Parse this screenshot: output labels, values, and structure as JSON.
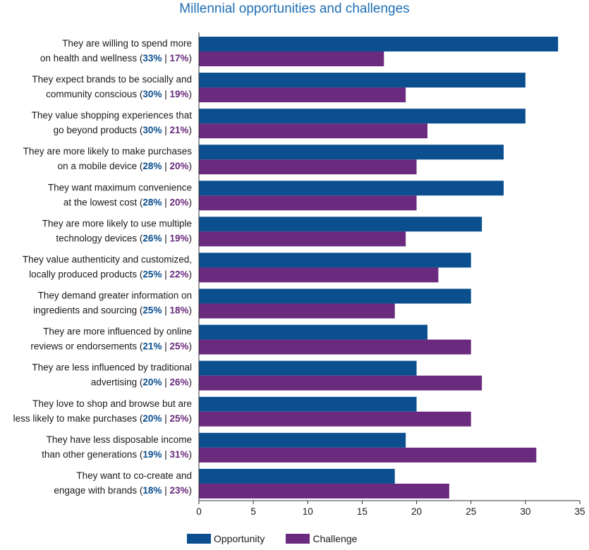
{
  "chart_data": {
    "type": "bar",
    "orientation": "horizontal",
    "title": "Millennial opportunities and challenges",
    "categories": [
      {
        "line1": "They are willing to spend more",
        "line2": "on health and wellness",
        "pct_opp": "33%",
        "pct_ch": "17%"
      },
      {
        "line1": "They expect brands to be socially and",
        "line2": "community conscious",
        "pct_opp": "30%",
        "pct_ch": "19%"
      },
      {
        "line1": "They value shopping experiences that",
        "line2": "go beyond products",
        "pct_opp": "30%",
        "pct_ch": "21%"
      },
      {
        "line1": "They are more likely to make purchases",
        "line2": "on a mobile device",
        "pct_opp": "28%",
        "pct_ch": "20%"
      },
      {
        "line1": "They want maximum convenience",
        "line2": "at the lowest cost",
        "pct_opp": "28%",
        "pct_ch": "20%"
      },
      {
        "line1": "They are more likely to use multiple",
        "line2": "technology devices",
        "pct_opp": "26%",
        "pct_ch": "19%"
      },
      {
        "line1": "They value authenticity and customized,",
        "line2": "locally produced products",
        "pct_opp": "25%",
        "pct_ch": "22%"
      },
      {
        "line1": "They demand greater information on",
        "line2": "ingredients and sourcing",
        "pct_opp": "25%",
        "pct_ch": "18%"
      },
      {
        "line1": "They are more influenced by online",
        "line2": "reviews or endorsements",
        "pct_opp": "21%",
        "pct_ch": "25%"
      },
      {
        "line1": "They are less influenced by traditional",
        "line2": "advertising",
        "pct_opp": "20%",
        "pct_ch": "26%"
      },
      {
        "line1": "They love to shop and browse but are",
        "line2": "less likely to make purchases",
        "pct_opp": "20%",
        "pct_ch": "25%"
      },
      {
        "line1": "They have less disposable income",
        "line2": "than other generations",
        "pct_opp": "19%",
        "pct_ch": "31%"
      },
      {
        "line1": "They want to co-create and",
        "line2": "engage with brands",
        "pct_opp": "18%",
        "pct_ch": "23%"
      }
    ],
    "series": [
      {
        "name": "Opportunity",
        "color": "#0b4f8f",
        "values": [
          33,
          30,
          30,
          28,
          28,
          26,
          25,
          25,
          21,
          20,
          20,
          19,
          18
        ]
      },
      {
        "name": "Challenge",
        "color": "#6a2a7e",
        "values": [
          17,
          19,
          21,
          20,
          20,
          19,
          22,
          18,
          25,
          26,
          25,
          31,
          23
        ]
      }
    ],
    "xlim": [
      0,
      35
    ],
    "xticks": [
      0,
      5,
      10,
      15,
      20,
      25,
      30,
      35
    ],
    "legend_position": "bottom",
    "grid": false
  }
}
